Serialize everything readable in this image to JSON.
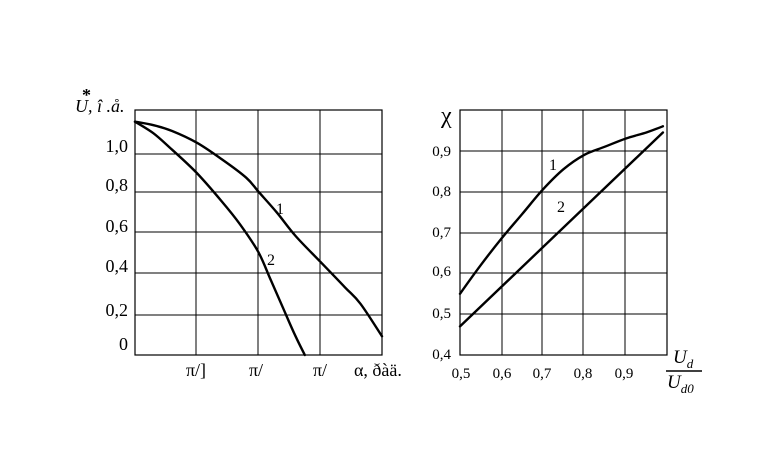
{
  "chart_data": [
    {
      "type": "line",
      "ylabel": "U, î .å.",
      "ylabel_mark": "*",
      "xlabel": "α, ðàä.",
      "x_ticks": [
        "π/]",
        "π/",
        "π/"
      ],
      "y_ticks": [
        "1,0",
        "0,8",
        "0,6",
        "0,4",
        "0,2",
        "0"
      ],
      "xlim": [
        0,
        4
      ],
      "ylim": [
        0,
        1.05
      ],
      "grid": true,
      "series": [
        {
          "name": "1",
          "x": [
            0,
            0.3,
            0.6,
            1.0,
            1.4,
            1.8,
            2.0,
            2.3,
            2.6,
            3.0,
            3.4,
            3.65,
            4.0
          ],
          "y": [
            1.0,
            0.985,
            0.96,
            0.91,
            0.84,
            0.76,
            0.7,
            0.61,
            0.51,
            0.4,
            0.29,
            0.22,
            0.08
          ]
        },
        {
          "name": "2",
          "x": [
            0,
            0.3,
            0.6,
            1.0,
            1.4,
            1.7,
            2.0,
            2.2,
            2.4,
            2.6,
            2.75
          ],
          "y": [
            1.0,
            0.95,
            0.88,
            0.78,
            0.66,
            0.56,
            0.44,
            0.32,
            0.2,
            0.08,
            0.0
          ]
        }
      ]
    },
    {
      "type": "line",
      "ylabel": "χ",
      "xlabel_num": "U",
      "xlabel_num_sub": "d",
      "xlabel_den": "U",
      "xlabel_den_sub": "d0",
      "x_ticks": [
        "0,5",
        "0,6",
        "0,7",
        "0,8",
        "0,9"
      ],
      "y_ticks": [
        "0,9",
        "0,8",
        "0,7",
        "0,6",
        "0,5",
        "0,4"
      ],
      "xlim": [
        0.5,
        1.0
      ],
      "ylim": [
        0.4,
        1.0
      ],
      "grid": true,
      "series": [
        {
          "name": "1",
          "x": [
            0.5,
            0.55,
            0.6,
            0.65,
            0.7,
            0.75,
            0.8,
            0.85,
            0.9,
            0.95,
            0.99
          ],
          "y": [
            0.55,
            0.62,
            0.685,
            0.745,
            0.805,
            0.855,
            0.89,
            0.91,
            0.93,
            0.945,
            0.96
          ]
        },
        {
          "name": "2",
          "x": [
            0.5,
            0.99
          ],
          "y": [
            0.47,
            0.945
          ]
        }
      ]
    }
  ]
}
